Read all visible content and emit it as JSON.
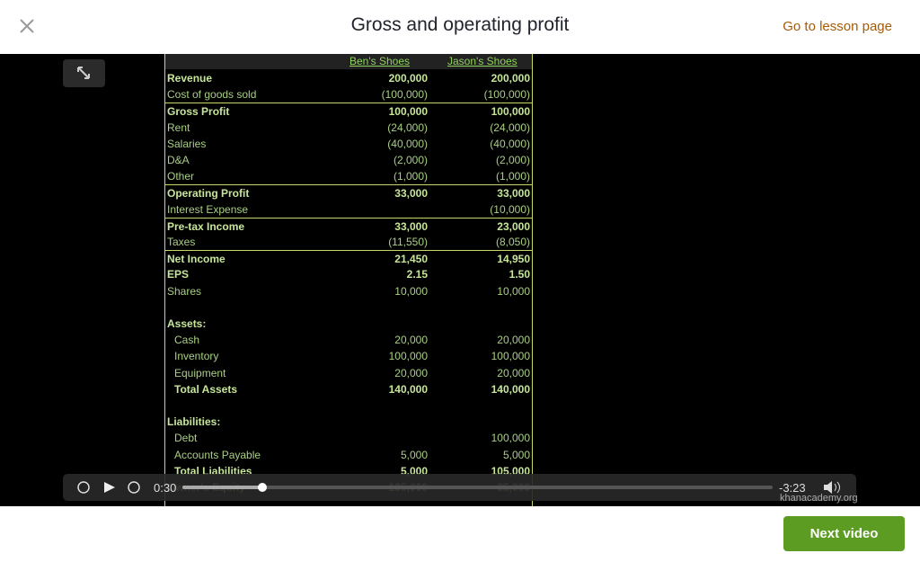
{
  "header": {
    "title": "Gross and operating profit",
    "link": "Go to lesson page"
  },
  "table": {
    "columns": [
      "Ben's Shoes",
      "Jason's Shoes"
    ],
    "rows": [
      {
        "label": "Revenue",
        "ben": "200,000",
        "jason": "200,000"
      },
      {
        "label": "Cost of goods sold",
        "ben": "(100,000)",
        "jason": "(100,000)"
      },
      {
        "label": "Gross Profit",
        "ben": "100,000",
        "jason": "100,000"
      },
      {
        "label": "Rent",
        "ben": "(24,000)",
        "jason": "(24,000)"
      },
      {
        "label": "Salaries",
        "ben": "(40,000)",
        "jason": "(40,000)"
      },
      {
        "label": "D&A",
        "ben": "(2,000)",
        "jason": "(2,000)"
      },
      {
        "label": "Other",
        "ben": "(1,000)",
        "jason": "(1,000)"
      },
      {
        "label": "Operating Profit",
        "ben": "33,000",
        "jason": "33,000"
      },
      {
        "label": "Interest Expense",
        "jason": "(10,000)"
      },
      {
        "label": "Pre-tax Income",
        "ben": "33,000",
        "jason": "23,000"
      },
      {
        "label": "Taxes",
        "ben": "(11,550)",
        "jason": "(8,050)"
      },
      {
        "label": "Net Income",
        "ben": "21,450",
        "jason": "14,950"
      },
      {
        "label": "EPS",
        "ben": "2.15",
        "jason": "1.50"
      },
      {
        "label": "Shares",
        "ben": "10,000",
        "jason": "10,000"
      },
      {
        "label": "Assets:"
      },
      {
        "label": "Cash",
        "ben": "20,000",
        "jason": "20,000"
      },
      {
        "label": "Inventory",
        "ben": "100,000",
        "jason": "100,000"
      },
      {
        "label": "Equipment",
        "ben": "20,000",
        "jason": "20,000"
      },
      {
        "label": "Total Assets",
        "ben": "140,000",
        "jason": "140,000"
      },
      {
        "label": "Liabilities:"
      },
      {
        "label": "Debt",
        "jason": "100,000"
      },
      {
        "label": "Accounts Payable",
        "ben": "5,000",
        "jason": "5,000"
      },
      {
        "label": "Total Liabilities",
        "ben": "5,000",
        "jason": "105,000"
      },
      {
        "label": "Owner's Equity",
        "ben": "135,000",
        "jason": "35,000"
      }
    ]
  },
  "player": {
    "elapsed": "0:30",
    "remaining": "-3:23",
    "watermark": "khanacademy.org"
  },
  "footer": {
    "button": "Next video"
  }
}
